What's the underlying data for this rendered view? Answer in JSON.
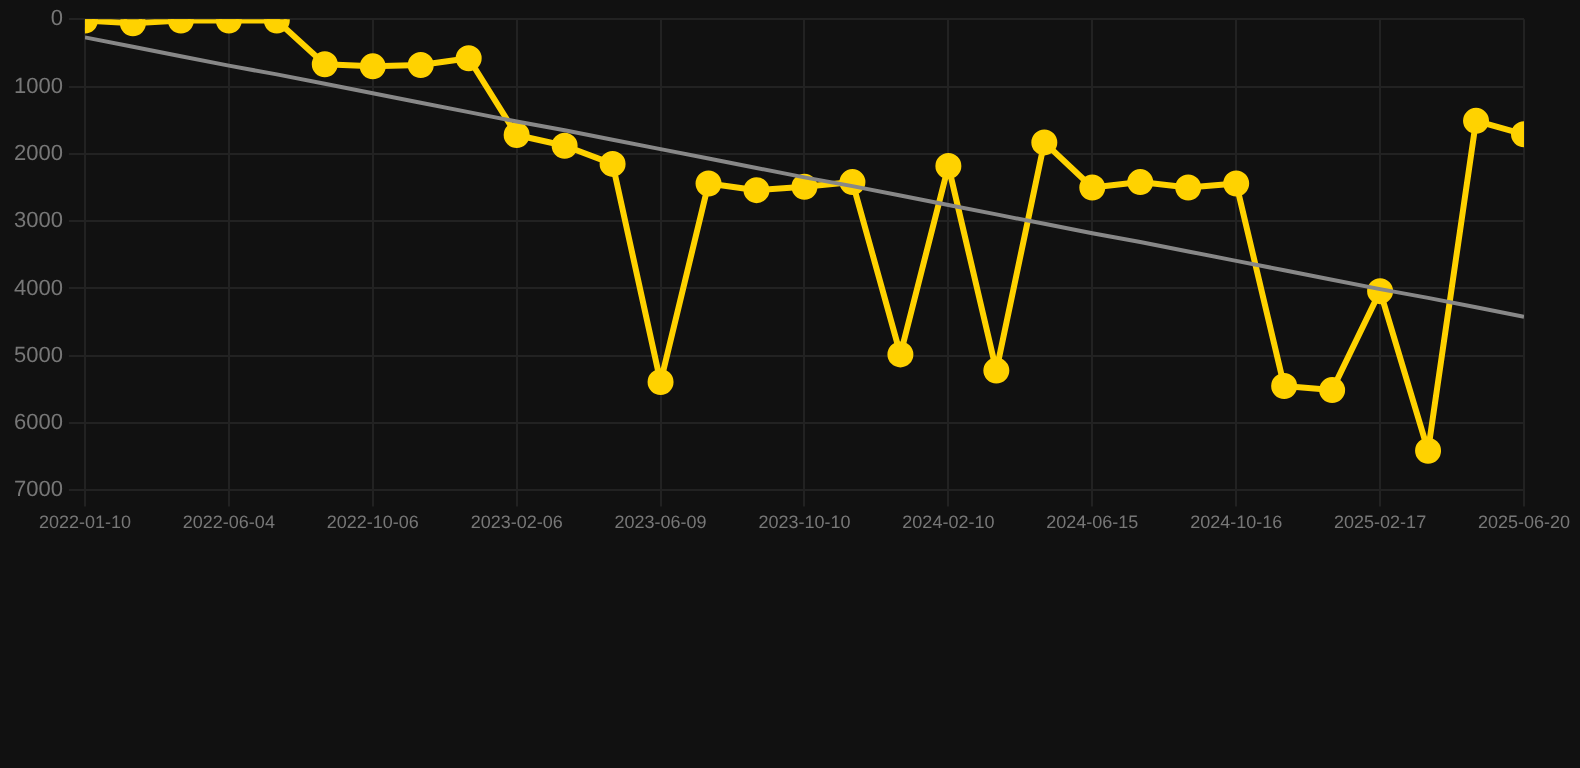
{
  "chart_data": {
    "type": "line",
    "categories": [
      "2022-01-10",
      null,
      null,
      "2022-06-04",
      null,
      null,
      "2022-10-06",
      null,
      null,
      "2023-02-06",
      null,
      null,
      "2023-06-09",
      null,
      null,
      "2023-10-10",
      null,
      null,
      "2024-02-10",
      null,
      null,
      "2024-06-15",
      null,
      null,
      "2024-10-16",
      null,
      null,
      "2025-02-17",
      null,
      null,
      "2025-06-20"
    ],
    "series": [
      {
        "color": "#ffd200",
        "values": [
          20,
          60,
          20,
          20,
          20,
          670,
          700,
          680,
          580,
          1720,
          1880,
          2150,
          5390,
          2440,
          2540,
          2490,
          2420,
          4980,
          2180,
          5220,
          1830,
          2500,
          2420,
          2500,
          2440,
          5450,
          5510,
          4040,
          6410,
          1510,
          1710
        ],
        "marker": "circle"
      },
      {
        "color": "#888888",
        "values": [
          270,
          410,
          550,
          690,
          820,
          960,
          1100,
          1240,
          1380,
          1520,
          1650,
          1790,
          1930,
          2070,
          2210,
          2350,
          2480,
          2620,
          2760,
          2900,
          3040,
          3180,
          3310,
          3450,
          3590,
          3730,
          3870,
          4010,
          4140,
          4280,
          4420
        ],
        "marker": "none"
      }
    ],
    "ylim": [
      7000,
      0
    ],
    "yticks": [
      0,
      1000,
      2000,
      3000,
      4000,
      5000,
      6000,
      7000
    ],
    "grid": true,
    "legend": false
  }
}
